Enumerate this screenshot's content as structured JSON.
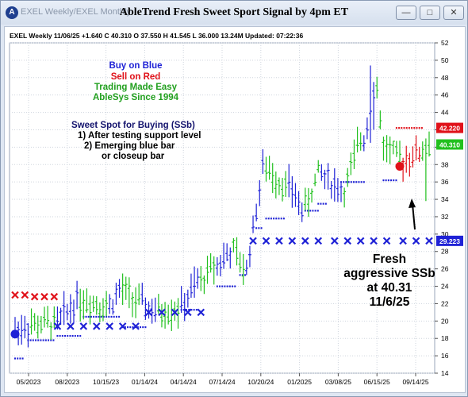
{
  "window": {
    "tab_label": "EXEL  Weekly/EXEL  Monthly",
    "title": "AbleTrend Fresh Sweet Sport Signal by 4pm ET",
    "controls": [
      "minimize",
      "restore",
      "close"
    ]
  },
  "header_info": "EXEL  Weekly 11/06/25 +1.640  C 40.310  O 37.550  H 41.545  L 36.000  13.24M  Updated: 07:22:36",
  "legend_notes": {
    "buy": "Buy on Blue",
    "sell": "Sell on Red",
    "easy": "Trading Made Easy",
    "since": "AbleSys Since 1994"
  },
  "sweet_spot": {
    "title": "Sweet Spot for Buying (SSb)",
    "line1": "1) After testing support level",
    "line2": "2) Emerging blue bar",
    "line3": "or closeup bar"
  },
  "callout": {
    "line1": "Fresh",
    "line2": "aggressive SSb",
    "line3": "at 40.31",
    "line4": "11/6/25"
  },
  "colors": {
    "blue": "#1f22d6",
    "red": "#e0121a",
    "green": "#22c01f",
    "grid": "#cfd5de"
  },
  "chart_data": {
    "type": "bar",
    "ticker": "EXEL",
    "timeframe": "Weekly",
    "ylim": [
      14,
      52
    ],
    "y_ticks": [
      14,
      16,
      18,
      20,
      22,
      24,
      26,
      28,
      30,
      32,
      34,
      36,
      38,
      40,
      42,
      44,
      46,
      48,
      50,
      52
    ],
    "x_tick_labels": [
      "05/2023",
      "08/2023",
      "10/15/23",
      "01/14/24",
      "04/14/24",
      "07/14/24",
      "10/20/24",
      "01/2025",
      "03/08/25",
      "06/15/25",
      "09/14/25"
    ],
    "price_labels": [
      {
        "value": 42.22,
        "text": "42.220",
        "color": "#e0121a"
      },
      {
        "value": 40.31,
        "text": "40.310",
        "color": "#22c01f"
      },
      {
        "value": 29.223,
        "text": "29.223",
        "color": "#1f22d6"
      }
    ],
    "segments": [
      {
        "start": 0,
        "end": 4,
        "color": "blue",
        "from": 19.0,
        "to": 19.5
      },
      {
        "start": 5,
        "end": 12,
        "color": "green",
        "from": 19.5,
        "to": 19.8
      },
      {
        "start": 13,
        "end": 19,
        "color": "blue",
        "from": 19.8,
        "to": 22.5
      },
      {
        "start": 20,
        "end": 28,
        "color": "green",
        "from": 22.5,
        "to": 21.8
      },
      {
        "start": 29,
        "end": 32,
        "color": "blue",
        "from": 21.8,
        "to": 23.5
      },
      {
        "start": 33,
        "end": 38,
        "color": "green",
        "from": 23.5,
        "to": 22.0
      },
      {
        "start": 39,
        "end": 43,
        "color": "blue",
        "from": 22.0,
        "to": 21.0
      },
      {
        "start": 44,
        "end": 50,
        "color": "green",
        "from": 21.0,
        "to": 21.5
      },
      {
        "start": 51,
        "end": 56,
        "color": "blue",
        "from": 21.5,
        "to": 24.5
      },
      {
        "start": 57,
        "end": 61,
        "color": "green",
        "from": 24.5,
        "to": 26.5
      },
      {
        "start": 62,
        "end": 66,
        "color": "blue",
        "from": 26.5,
        "to": 28.0
      },
      {
        "start": 67,
        "end": 70,
        "color": "green",
        "from": 28.0,
        "to": 26.0
      },
      {
        "start": 71,
        "end": 76,
        "color": "blue",
        "from": 26.0,
        "to": 37.5
      },
      {
        "start": 77,
        "end": 83,
        "color": "green",
        "from": 37.5,
        "to": 35.5
      },
      {
        "start": 84,
        "end": 88,
        "color": "blue",
        "from": 35.5,
        "to": 33.0
      },
      {
        "start": 89,
        "end": 93,
        "color": "green",
        "from": 33.0,
        "to": 37.0
      },
      {
        "start": 94,
        "end": 100,
        "color": "blue",
        "from": 37.0,
        "to": 35.0
      },
      {
        "start": 101,
        "end": 106,
        "color": "green",
        "from": 35.0,
        "to": 41.0
      },
      {
        "start": 107,
        "end": 110,
        "color": "blue",
        "from": 41.0,
        "to": 46.5
      },
      {
        "start": 111,
        "end": 113,
        "color": "green",
        "from": 46.5,
        "to": 40.0
      },
      {
        "start": 114,
        "end": 118,
        "color": "green",
        "from": 40.0,
        "to": 38.5
      },
      {
        "start": 119,
        "end": 121,
        "color": "red",
        "from": 38.5,
        "to": 39.0
      },
      {
        "start": 122,
        "end": 124,
        "color": "red",
        "from": 39.0,
        "to": 39.5
      },
      {
        "start": 125,
        "end": 127,
        "color": "green",
        "from": 39.5,
        "to": 40.31
      }
    ],
    "sell_markers": [
      {
        "bar": 0,
        "value": 23.0
      },
      {
        "bar": 3,
        "value": 23.0
      },
      {
        "bar": 6,
        "value": 22.8
      },
      {
        "bar": 9,
        "value": 22.8
      },
      {
        "bar": 12,
        "value": 22.8
      }
    ],
    "support_markers": [
      {
        "bar": 13,
        "value": 19.4
      },
      {
        "bar": 17,
        "value": 19.4
      },
      {
        "bar": 21,
        "value": 19.4
      },
      {
        "bar": 25,
        "value": 19.4
      },
      {
        "bar": 29,
        "value": 19.4
      },
      {
        "bar": 33,
        "value": 19.4
      },
      {
        "bar": 37,
        "value": 19.4
      },
      {
        "bar": 41,
        "value": 21.0
      },
      {
        "bar": 45,
        "value": 21.0
      },
      {
        "bar": 49,
        "value": 21.0
      },
      {
        "bar": 53,
        "value": 21.0
      },
      {
        "bar": 57,
        "value": 21.0
      },
      {
        "bar": 73,
        "value": 29.223
      },
      {
        "bar": 77,
        "value": 29.223
      },
      {
        "bar": 81,
        "value": 29.223
      },
      {
        "bar": 85,
        "value": 29.223
      },
      {
        "bar": 89,
        "value": 29.223
      },
      {
        "bar": 93,
        "value": 29.223
      },
      {
        "bar": 98,
        "value": 29.223
      },
      {
        "bar": 102,
        "value": 29.223
      },
      {
        "bar": 106,
        "value": 29.223
      },
      {
        "bar": 110,
        "value": 29.223
      },
      {
        "bar": 114,
        "value": 29.223
      },
      {
        "bar": 119,
        "value": 29.223
      },
      {
        "bar": 123,
        "value": 29.223
      },
      {
        "bar": 127,
        "value": 29.223
      }
    ],
    "stop_lines": [
      {
        "start": 0,
        "end": 3,
        "value": 15.7,
        "color": "blue"
      },
      {
        "start": 4,
        "end": 12,
        "value": 17.8,
        "color": "blue"
      },
      {
        "start": 13,
        "end": 20,
        "value": 18.3,
        "color": "blue"
      },
      {
        "start": 21,
        "end": 32,
        "value": 20.5,
        "color": "blue"
      },
      {
        "start": 33,
        "end": 40,
        "value": 19.3,
        "color": "blue"
      },
      {
        "start": 51,
        "end": 56,
        "value": 21.3,
        "color": "blue"
      },
      {
        "start": 62,
        "end": 68,
        "value": 24.0,
        "color": "blue"
      },
      {
        "start": 69,
        "end": 71,
        "value": 25.3,
        "color": "blue"
      },
      {
        "start": 74,
        "end": 76,
        "value": 30.7,
        "color": "blue"
      },
      {
        "start": 77,
        "end": 83,
        "value": 31.8,
        "color": "blue"
      },
      {
        "start": 89,
        "end": 93,
        "value": 32.7,
        "color": "blue"
      },
      {
        "start": 93,
        "end": 96,
        "value": 33.5,
        "color": "blue"
      },
      {
        "start": 100,
        "end": 107,
        "value": 36.0,
        "color": "blue"
      },
      {
        "start": 113,
        "end": 117,
        "value": 36.2,
        "color": "blue"
      },
      {
        "start": 117,
        "end": 125,
        "value": 42.22,
        "color": "red"
      }
    ],
    "signal_dots": [
      {
        "bar": 0,
        "value": 18.5,
        "color": "blue"
      },
      {
        "bar": 118,
        "value": 37.8,
        "color": "red"
      }
    ],
    "spikes": [
      {
        "bar": 109,
        "high": 49.4,
        "low": 40.5
      },
      {
        "bar": 110,
        "high": 47.5,
        "low": 42.0
      },
      {
        "bar": 126,
        "high": 41.0,
        "low": 33.8
      }
    ]
  }
}
